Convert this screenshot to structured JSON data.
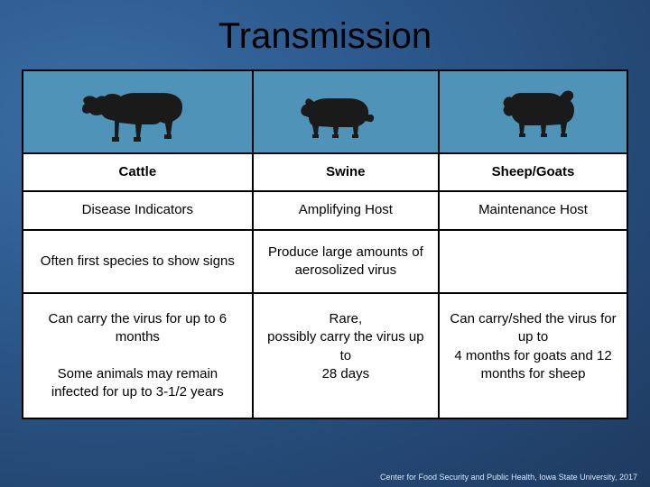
{
  "title": "Transmission",
  "icon_bg_color": "#4f94b8",
  "animal_fill": "#1a1a1a",
  "columns": [
    {
      "name": "Cattle",
      "icon": "cow"
    },
    {
      "name": "Swine",
      "icon": "pig"
    },
    {
      "name": "Sheep/Goats",
      "icon": "sheep"
    }
  ],
  "rows": {
    "role": [
      "Disease Indicators",
      "Amplifying Host",
      "Maintenance Host"
    ],
    "detail1": [
      "Often first species to show signs",
      "Produce large amounts of aerosolized virus",
      ""
    ],
    "detail2": [
      "Can carry the virus for up to 6 months\n\nSome animals may remain infected for up to 3-1/2 years",
      "Rare,\npossibly carry the virus up to\n28 days",
      "Can carry/shed the virus for up to\n4 months for goats and 12 months for sheep"
    ]
  },
  "footer": "Center for Food Security and Public Health, Iowa State University, 2017"
}
